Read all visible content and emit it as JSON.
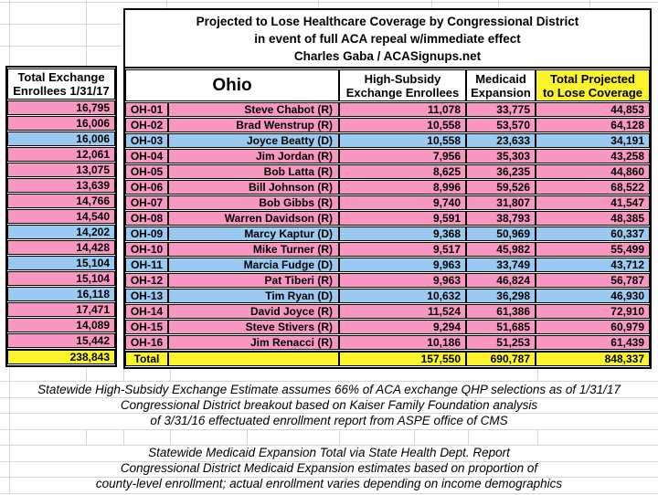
{
  "title": {
    "lines": [
      "Projected to Lose Healthcare Coverage by Congressional District",
      "in event of full ACA repeal w/immediate effect",
      "Charles Gaba / ACASignups.net"
    ]
  },
  "left_column": {
    "header": [
      "Total Exchange",
      "Enrollees 1/31/17"
    ],
    "total": "238,843"
  },
  "main_table": {
    "state_header": "Ohio",
    "columns": {
      "high_subsidy": [
        "High-Subsidy",
        "Exchange Enrollees"
      ],
      "medicaid": [
        "Medicaid",
        "Expansion"
      ],
      "total": [
        "Total Projected",
        "to Lose Coverage"
      ]
    },
    "total_row": {
      "label": "Total",
      "high_subsidy": "157,550",
      "medicaid": "690,787",
      "total": "848,337"
    }
  },
  "rows": [
    {
      "district": "OH-01",
      "name": "Steve Chabot (R)",
      "party": "R",
      "exchange_enrollees": "16,795",
      "high_subsidy": "11,078",
      "medicaid": "33,775",
      "total_projected": "44,853"
    },
    {
      "district": "OH-02",
      "name": "Brad Wenstrup (R)",
      "party": "R",
      "exchange_enrollees": "16,006",
      "high_subsidy": "10,558",
      "medicaid": "53,570",
      "total_projected": "64,128"
    },
    {
      "district": "OH-03",
      "name": "Joyce Beatty (D)",
      "party": "D",
      "exchange_enrollees": "16,006",
      "high_subsidy": "10,558",
      "medicaid": "23,633",
      "total_projected": "34,191"
    },
    {
      "district": "OH-04",
      "name": "Jim Jordan (R)",
      "party": "R",
      "exchange_enrollees": "12,061",
      "high_subsidy": "7,956",
      "medicaid": "35,303",
      "total_projected": "43,258"
    },
    {
      "district": "OH-05",
      "name": "Bob Latta (R)",
      "party": "R",
      "exchange_enrollees": "13,075",
      "high_subsidy": "8,625",
      "medicaid": "36,235",
      "total_projected": "44,860"
    },
    {
      "district": "OH-06",
      "name": "Bill Johnson (R)",
      "party": "R",
      "exchange_enrollees": "13,639",
      "high_subsidy": "8,996",
      "medicaid": "59,526",
      "total_projected": "68,522"
    },
    {
      "district": "OH-07",
      "name": "Bob Gibbs (R)",
      "party": "R",
      "exchange_enrollees": "14,766",
      "high_subsidy": "9,740",
      "medicaid": "31,807",
      "total_projected": "41,547"
    },
    {
      "district": "OH-08",
      "name": "Warren Davidson (R)",
      "party": "R",
      "exchange_enrollees": "14,540",
      "high_subsidy": "9,591",
      "medicaid": "38,793",
      "total_projected": "48,385"
    },
    {
      "district": "OH-09",
      "name": "Marcy Kaptur (D)",
      "party": "D",
      "exchange_enrollees": "14,202",
      "high_subsidy": "9,368",
      "medicaid": "50,969",
      "total_projected": "60,337"
    },
    {
      "district": "OH-10",
      "name": "Mike Turner (R)",
      "party": "R",
      "exchange_enrollees": "14,428",
      "high_subsidy": "9,517",
      "medicaid": "45,982",
      "total_projected": "55,499"
    },
    {
      "district": "OH-11",
      "name": "Marcia Fudge (D)",
      "party": "D",
      "exchange_enrollees": "15,104",
      "high_subsidy": "9,963",
      "medicaid": "33,749",
      "total_projected": "43,712"
    },
    {
      "district": "OH-12",
      "name": "Pat Tiberi (R)",
      "party": "R",
      "exchange_enrollees": "15,104",
      "high_subsidy": "9,963",
      "medicaid": "46,824",
      "total_projected": "56,787"
    },
    {
      "district": "OH-13",
      "name": "Tim Ryan (D)",
      "party": "D",
      "exchange_enrollees": "16,118",
      "high_subsidy": "10,632",
      "medicaid": "36,298",
      "total_projected": "46,930"
    },
    {
      "district": "OH-14",
      "name": "David Joyce (R)",
      "party": "R",
      "exchange_enrollees": "17,471",
      "high_subsidy": "11,524",
      "medicaid": "61,386",
      "total_projected": "72,910"
    },
    {
      "district": "OH-15",
      "name": "Steve Stivers (R)",
      "party": "R",
      "exchange_enrollees": "14,089",
      "high_subsidy": "9,294",
      "medicaid": "51,685",
      "total_projected": "60,979"
    },
    {
      "district": "OH-16",
      "name": "Jim Renacci (R)",
      "party": "R",
      "exchange_enrollees": "15,442",
      "high_subsidy": "10,186",
      "medicaid": "51,253",
      "total_projected": "61,439"
    }
  ],
  "footnotes_group1": [
    "Statewide High-Subsidy Exchange Estimate assumes 66% of ACA exchange QHP selections as of 1/31/17",
    "Congressional District breakout based on Kaiser Family Foundation analysis",
    "of 3/31/16 effectuated enrollment report from ASPE office of CMS"
  ],
  "footnotes_group2": [
    "Statewide Medicaid Expansion Total via State Health Dept. Report",
    "Congressional District Medicaid Expansion estimates based on proportion of",
    "county-level enrollment; actual enrollment varies depending on income demographics"
  ],
  "colors": {
    "republican_row": "#F797C2",
    "democrat_row": "#9ACAF1",
    "highlight": "#FBF42C"
  }
}
